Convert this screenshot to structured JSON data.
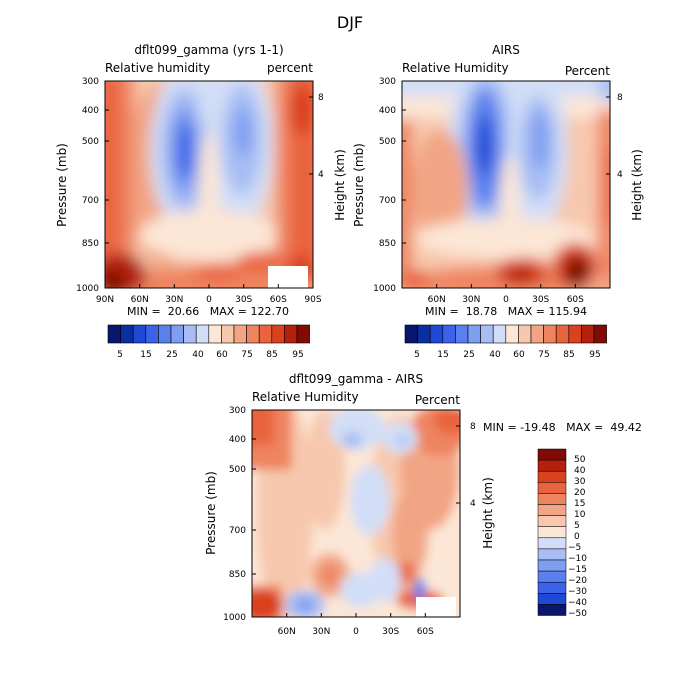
{
  "figure_title": "DJF",
  "chart_data": [
    {
      "id": "model",
      "type": "heatmap",
      "title": "dflt099_gamma (yrs 1-1)",
      "subtitle_left": "Relative humidity",
      "subtitle_right": "percent",
      "ylabel": "Pressure (mb)",
      "ylabel_right": "Height (km)",
      "x_ticks": [
        "90N",
        "60N",
        "30N",
        "0",
        "30S",
        "60S",
        "90S"
      ],
      "y_ticks": [
        "300",
        "400",
        "500",
        "700",
        "850",
        "1000"
      ],
      "y_ticks_right": [
        "8",
        "4"
      ],
      "ylim": [
        300,
        1000
      ],
      "xlim": [
        "90N",
        "90S"
      ],
      "stats": "MIN =  20.66   MAX = 122.70",
      "min": 20.66,
      "max": 122.7,
      "colorbar_labels": [
        "5",
        "15",
        "25",
        "40",
        "60",
        "75",
        "85",
        "95"
      ],
      "contour_levels": [
        5,
        10,
        15,
        20,
        25,
        30,
        40,
        50,
        60,
        65,
        70,
        75,
        80,
        85,
        90,
        95
      ]
    },
    {
      "id": "obs",
      "type": "heatmap",
      "title": "AIRS",
      "subtitle_left": "Relative Humidity",
      "subtitle_right": "Percent",
      "ylabel": "Pressure (mb)",
      "ylabel_right": "Height (km)",
      "x_ticks": [
        "60N",
        "30N",
        "0",
        "30S",
        "60S"
      ],
      "y_ticks": [
        "300",
        "400",
        "500",
        "700",
        "850",
        "1000"
      ],
      "y_ticks_right": [
        "8",
        "4"
      ],
      "ylim": [
        300,
        1000
      ],
      "stats": "MIN =  18.78   MAX = 115.94",
      "min": 18.78,
      "max": 115.94,
      "colorbar_labels": [
        "5",
        "15",
        "25",
        "40",
        "60",
        "75",
        "85",
        "95"
      ],
      "contour_levels": [
        5,
        10,
        15,
        20,
        25,
        30,
        40,
        50,
        60,
        65,
        70,
        75,
        80,
        85,
        90,
        95
      ]
    },
    {
      "id": "diff",
      "type": "heatmap",
      "title": "dflt099_gamma - AIRS",
      "subtitle_left": "Relative Humidity",
      "subtitle_right": "Percent",
      "ylabel": "Pressure (mb)",
      "ylabel_right": "Height (km)",
      "x_ticks": [
        "60N",
        "30N",
        "0",
        "30S",
        "60S"
      ],
      "y_ticks": [
        "300",
        "400",
        "500",
        "700",
        "850",
        "1000"
      ],
      "y_ticks_right": [
        "8",
        "4"
      ],
      "ylim": [
        300,
        1000
      ],
      "stats": "MIN = -19.48   MAX =  49.42",
      "min": -19.48,
      "max": 49.42,
      "colorbar_labels": [
        "50",
        "40",
        "30",
        "20",
        "15",
        "10",
        "5",
        "0",
        "−5",
        "−10",
        "−15",
        "−20",
        "−30",
        "−40",
        "−50"
      ],
      "contour_levels": [
        50,
        40,
        30,
        20,
        15,
        10,
        5,
        0,
        -5,
        -10,
        -15,
        -20,
        -30,
        -40,
        -50
      ]
    }
  ],
  "palettes": {
    "sequential": [
      "#08166e",
      "#0b2fa0",
      "#1f49d4",
      "#3b62e8",
      "#5a80ee",
      "#7f9ef1",
      "#a7bdf3",
      "#d2def7",
      "#fce6d6",
      "#f7c8ad",
      "#f2a584",
      "#ef8460",
      "#e9643e",
      "#d9411f",
      "#b3210d",
      "#7f0b04"
    ],
    "diverging": [
      "#7f0b04",
      "#b3210d",
      "#d9411f",
      "#e9643e",
      "#ef8460",
      "#f2a584",
      "#f7c8ad",
      "#fce6d6",
      "#d2def7",
      "#a7bdf3",
      "#7f9ef1",
      "#5a80ee",
      "#3b62e8",
      "#1f49d4",
      "#08166e"
    ]
  }
}
